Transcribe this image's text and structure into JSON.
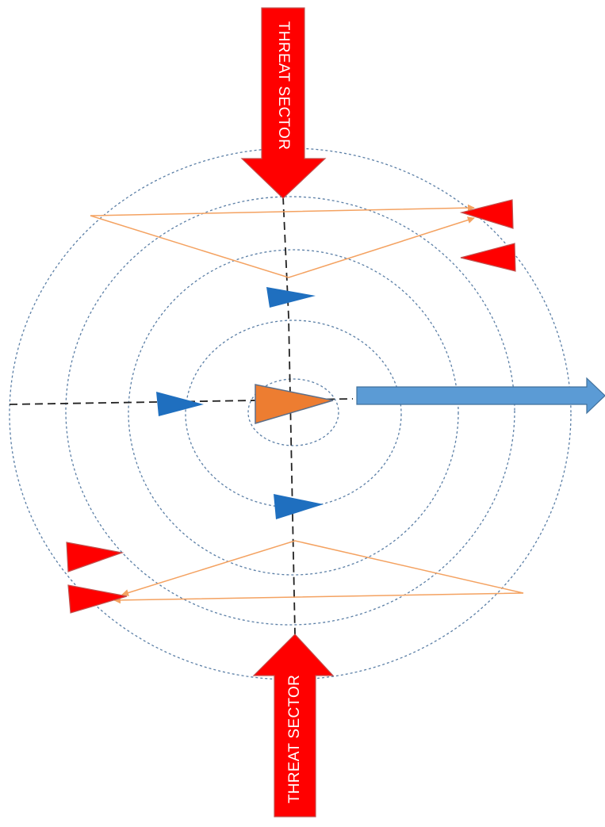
{
  "threat_sectors": {
    "top_label": "THREAT SECTOR",
    "bottom_label": "THREAT SECTOR"
  },
  "colors": {
    "threat": "#ff0000",
    "threat_outline": "#c00000",
    "friendly_escort": "#1f6fbf",
    "main_body": "#ed7d31",
    "main_body_outline": "#5b6f8a",
    "course_arrow": "#5b9bd5",
    "course_arrow_outline": "#41719c",
    "track": "#f4a261",
    "range_ring": "#5b7fa6",
    "axis_line": "#222222"
  },
  "icons": {
    "threat_contact": "red-triangle-icon",
    "escort": "blue-triangle-icon",
    "main_body": "orange-triangle-icon",
    "course": "right-arrow-icon"
  }
}
